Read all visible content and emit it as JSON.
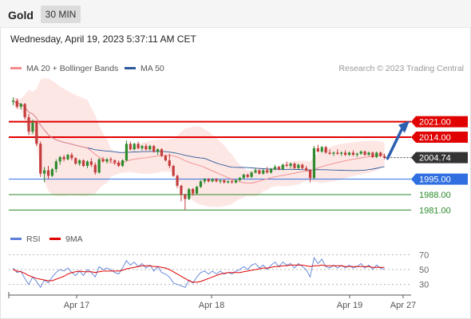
{
  "header": {
    "instrument": "Gold",
    "timeframe": "30 MIN"
  },
  "timestamp": "Wednesday, April 19, 2023 5:37:11 AM CET",
  "legend": {
    "ma20_label": "MA 20 + Bollinger Bands",
    "ma20_color": "#f28b8b",
    "ma50_label": "MA 50",
    "ma50_color": "#2c5a9a",
    "copyright": "Research © 2023 Trading Central"
  },
  "rsi_legend": {
    "rsi_label": "RSI",
    "rsi_color": "#5b7fd6",
    "ma_label": "9MA",
    "ma_color": "#e00000"
  },
  "chart_data": [
    {
      "type": "candlestick",
      "instrument": "Gold",
      "timeframe": "30 MIN",
      "x_ticks": [
        "Apr 17",
        "Apr 18",
        "Apr 19",
        "Apr 27"
      ],
      "ylim": [
        1975,
        2040
      ],
      "levels": [
        {
          "label": "2021.00",
          "value": 2021.0,
          "role": "resistance",
          "color": "#e00000",
          "badge": true
        },
        {
          "label": "2014.00",
          "value": 2014.0,
          "role": "resistance",
          "color": "#e00000",
          "badge": true
        },
        {
          "label": "2004.74",
          "value": 2004.74,
          "role": "last-price",
          "color": "#333333",
          "badge": true
        },
        {
          "label": "1995.00",
          "value": 1995.0,
          "role": "pivot",
          "color": "#2f6fe0",
          "badge": true
        },
        {
          "label": "1988.00",
          "value": 1988.0,
          "role": "support",
          "color": "#2a8a2a",
          "badge": false
        },
        {
          "label": "1981.00",
          "value": 1981.0,
          "role": "support",
          "color": "#2a8a2a",
          "badge": false
        }
      ],
      "projection": {
        "from": 2004.74,
        "to": 2021.0,
        "color": "#2c5fb0"
      },
      "candles": [
        [
          2030.0,
          2032.0,
          2028.5,
          2030.5
        ],
        [
          2030.5,
          2031.5,
          2027.0,
          2027.8
        ],
        [
          2027.8,
          2029.5,
          2026.5,
          2029.0
        ],
        [
          2029.0,
          2029.5,
          2022.0,
          2023.0
        ],
        [
          2023.0,
          2024.5,
          2015.0,
          2016.5
        ],
        [
          2016.5,
          2022.0,
          2015.5,
          2020.5
        ],
        [
          2020.5,
          2021.0,
          2010.0,
          2011.0
        ],
        [
          2011.0,
          2012.0,
          1996.0,
          1997.5
        ],
        [
          1997.5,
          2000.5,
          1993.5,
          1999.0
        ],
        [
          1999.0,
          2001.0,
          1995.0,
          1996.5
        ],
        [
          1996.5,
          2000.0,
          1996.0,
          1999.5
        ],
        [
          1999.5,
          2004.0,
          1998.0,
          2003.0
        ],
        [
          2003.0,
          2005.5,
          2001.5,
          2005.0
        ],
        [
          2005.0,
          2006.0,
          2003.0,
          2004.0
        ],
        [
          2004.0,
          2006.5,
          2003.5,
          2006.0
        ],
        [
          2006.0,
          2007.0,
          2003.5,
          2004.5
        ],
        [
          2004.5,
          2005.0,
          2001.5,
          2002.0
        ],
        [
          2002.0,
          2004.0,
          2001.0,
          2003.5
        ],
        [
          2003.5,
          2004.0,
          2000.5,
          2001.0
        ],
        [
          2001.0,
          2003.5,
          2000.0,
          2003.0
        ],
        [
          2003.0,
          2004.5,
          2000.5,
          2001.5
        ],
        [
          2001.5,
          2002.5,
          1997.0,
          1998.0
        ],
        [
          1998.0,
          2004.5,
          1997.5,
          2004.0
        ],
        [
          2004.0,
          2005.0,
          2002.5,
          2003.0
        ],
        [
          2003.0,
          2004.5,
          2002.0,
          2004.0
        ],
        [
          2004.0,
          2005.0,
          2002.5,
          2003.5
        ],
        [
          2003.5,
          2004.0,
          2001.5,
          2002.5
        ],
        [
          2002.5,
          2003.5,
          2000.5,
          2001.0
        ],
        [
          2001.0,
          2004.0,
          2000.5,
          2003.5
        ],
        [
          2003.5,
          2012.5,
          2003.0,
          2011.0
        ],
        [
          2011.0,
          2012.0,
          2008.0,
          2008.5
        ],
        [
          2008.5,
          2011.5,
          2008.0,
          2011.0
        ],
        [
          2011.0,
          2012.0,
          2008.5,
          2009.0
        ],
        [
          2009.0,
          2010.5,
          2008.0,
          2010.0
        ],
        [
          2010.0,
          2011.0,
          2008.0,
          2008.5
        ],
        [
          2008.5,
          2010.5,
          2008.0,
          2010.0
        ],
        [
          2010.0,
          2010.5,
          2007.0,
          2007.5
        ],
        [
          2007.5,
          2009.0,
          2006.0,
          2008.5
        ],
        [
          2008.5,
          2009.0,
          2005.0,
          2005.5
        ],
        [
          2005.5,
          2006.0,
          2003.0,
          2003.5
        ],
        [
          2003.5,
          2006.5,
          2000.0,
          2001.0
        ],
        [
          2001.0,
          2001.5,
          1996.0,
          1996.5
        ],
        [
          1996.5,
          1997.0,
          1991.0,
          1992.0
        ],
        [
          1992.0,
          1992.5,
          1985.0,
          1988.0
        ],
        [
          1988.0,
          1988.5,
          1981.0,
          1986.0
        ],
        [
          1986.0,
          1991.0,
          1985.5,
          1990.5
        ],
        [
          1990.5,
          1991.0,
          1987.5,
          1988.5
        ],
        [
          1988.5,
          1992.0,
          1988.0,
          1991.5
        ],
        [
          1991.5,
          1994.5,
          1991.0,
          1994.0
        ],
        [
          1994.0,
          1995.5,
          1993.0,
          1995.0
        ],
        [
          1995.0,
          1995.5,
          1993.5,
          1994.0
        ],
        [
          1994.0,
          1995.5,
          1993.5,
          1995.0
        ],
        [
          1995.0,
          1995.5,
          1993.5,
          1994.0
        ],
        [
          1994.0,
          1995.0,
          1993.0,
          1994.5
        ],
        [
          1994.5,
          1995.0,
          1993.0,
          1993.5
        ],
        [
          1993.5,
          1994.5,
          1993.0,
          1994.0
        ],
        [
          1994.0,
          1995.0,
          1993.0,
          1993.5
        ],
        [
          1993.5,
          1995.0,
          1993.0,
          1994.5
        ],
        [
          1994.5,
          1996.0,
          1994.0,
          1995.5
        ],
        [
          1995.5,
          1997.5,
          1995.0,
          1997.0
        ],
        [
          1997.0,
          1997.5,
          1995.5,
          1996.0
        ],
        [
          1996.0,
          1998.5,
          1995.5,
          1998.0
        ],
        [
          1998.0,
          2000.0,
          1997.5,
          1999.0
        ],
        [
          1999.0,
          1999.5,
          1997.0,
          1997.5
        ],
        [
          1997.5,
          1999.5,
          1997.0,
          1999.0
        ],
        [
          1999.0,
          2000.5,
          1997.5,
          1998.0
        ],
        [
          1998.0,
          2000.0,
          1997.5,
          1999.5
        ],
        [
          1999.5,
          2001.5,
          1999.0,
          2000.5
        ],
        [
          2000.5,
          2001.0,
          1999.0,
          1999.5
        ],
        [
          1999.5,
          2002.0,
          1999.0,
          2001.5
        ],
        [
          2001.5,
          2003.0,
          2000.5,
          2001.0
        ],
        [
          2001.0,
          2002.5,
          2000.0,
          2002.0
        ],
        [
          2002.0,
          2002.5,
          1999.5,
          2000.0
        ],
        [
          2000.0,
          2002.0,
          1999.5,
          2001.5
        ],
        [
          2001.5,
          2002.0,
          1999.5,
          2000.0
        ],
        [
          2000.0,
          2001.0,
          1998.5,
          1999.0
        ],
        [
          1999.0,
          1999.5,
          1993.5,
          1995.5
        ],
        [
          1995.5,
          2010.0,
          1995.0,
          2009.0
        ],
        [
          2009.0,
          2010.5,
          2007.0,
          2007.5
        ],
        [
          2007.5,
          2010.0,
          2007.0,
          2009.5
        ],
        [
          2009.5,
          2010.0,
          2006.5,
          2007.0
        ],
        [
          2007.0,
          2008.5,
          2006.0,
          2006.5
        ],
        [
          2006.5,
          2007.5,
          2005.5,
          2007.0
        ],
        [
          2007.0,
          2008.5,
          2006.0,
          2006.5
        ],
        [
          2006.5,
          2007.5,
          2005.5,
          2007.0
        ],
        [
          2007.0,
          2008.0,
          2005.5,
          2006.0
        ],
        [
          2006.0,
          2007.5,
          2005.5,
          2007.0
        ],
        [
          2007.0,
          2008.0,
          2005.5,
          2006.0
        ],
        [
          2006.0,
          2007.0,
          2005.0,
          2006.5
        ],
        [
          2006.5,
          2008.0,
          2006.0,
          2007.5
        ],
        [
          2007.5,
          2008.0,
          2005.5,
          2006.0
        ],
        [
          2006.0,
          2007.5,
          2005.5,
          2007.0
        ],
        [
          2007.0,
          2007.5,
          2004.5,
          2005.0
        ],
        [
          2005.0,
          2007.5,
          2004.5,
          2007.0
        ],
        [
          2007.0,
          2007.5,
          2005.0,
          2005.5
        ],
        [
          2005.5,
          2006.5,
          2004.0,
          2004.74
        ]
      ]
    },
    {
      "type": "line",
      "title": "RSI",
      "series": [
        {
          "name": "RSI"
        },
        {
          "name": "9MA"
        }
      ],
      "ylim": [
        20,
        80
      ],
      "y_ticks": [
        70,
        50,
        30
      ],
      "rsi": [
        52,
        46,
        48,
        38,
        30,
        40,
        34,
        26,
        36,
        32,
        40,
        46,
        50,
        48,
        52,
        46,
        42,
        48,
        42,
        50,
        46,
        40,
        54,
        50,
        52,
        50,
        46,
        44,
        52,
        62,
        56,
        60,
        54,
        58,
        52,
        56,
        48,
        54,
        46,
        44,
        40,
        32,
        30,
        28,
        26,
        36,
        32,
        40,
        46,
        48,
        44,
        48,
        44,
        48,
        44,
        46,
        44,
        48,
        50,
        54,
        50,
        56,
        58,
        52,
        56,
        50,
        56,
        60,
        54,
        60,
        56,
        58,
        52,
        58,
        54,
        50,
        40,
        66,
        58,
        64,
        54,
        52,
        56,
        52,
        56,
        52,
        56,
        52,
        54,
        58,
        52,
        56,
        50,
        56,
        52,
        50
      ],
      "ma9": [
        50,
        48,
        47,
        45,
        42,
        40,
        38,
        37,
        36,
        35,
        35,
        37,
        39,
        41,
        44,
        46,
        47,
        48,
        47,
        47,
        47,
        46,
        47,
        48,
        48,
        48,
        48,
        48,
        49,
        51,
        52,
        53,
        54,
        55,
        55,
        55,
        54,
        54,
        53,
        52,
        50,
        47,
        44,
        41,
        38,
        35,
        33,
        33,
        34,
        36,
        38,
        40,
        42,
        44,
        45,
        46,
        46,
        46,
        46,
        47,
        48,
        49,
        50,
        51,
        52,
        52,
        53,
        54,
        54,
        55,
        55,
        56,
        56,
        56,
        56,
        55,
        54,
        55,
        55,
        56,
        55,
        55,
        55,
        55,
        55,
        54,
        54,
        54,
        54,
        54,
        54,
        54,
        53,
        53,
        53,
        53
      ]
    }
  ]
}
